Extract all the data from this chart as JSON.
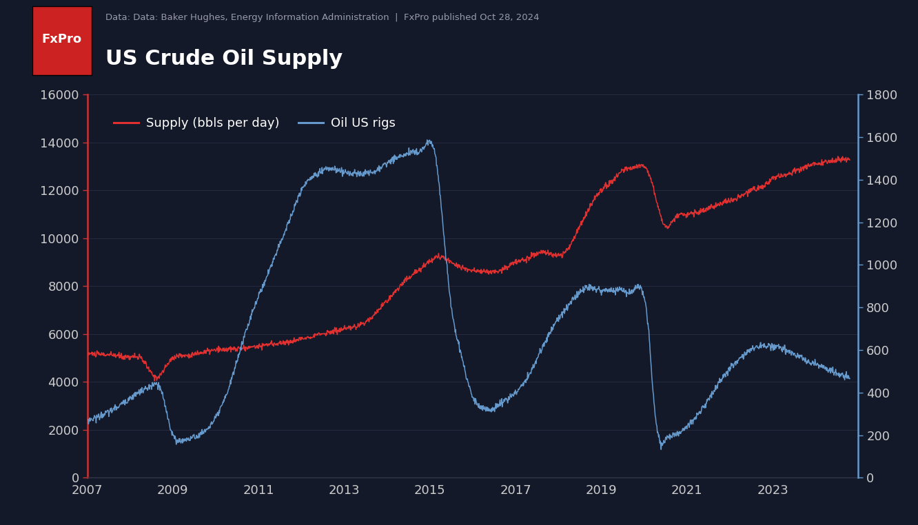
{
  "title": "US Crude Oil Supply",
  "subtitle": "Data: Data: Baker Hughes, Energy Information Administration  |  FxPro published Oct 28, 2024",
  "bg_color": "#131929",
  "header_bg": "#1e2535",
  "title_color": "#ffffff",
  "subtitle_color": "#999aaa",
  "supply_color": "#e03030",
  "rigs_color": "#6699cc",
  "left_axis_color": "#cc3333",
  "right_axis_color": "#6699cc",
  "tick_color": "#cccccc",
  "logo_bg": "#cc2222",
  "logo_text": "FxPro",
  "ylim_left": [
    0,
    16000
  ],
  "ylim_right": [
    0,
    1800
  ],
  "yticks_left": [
    0,
    2000,
    4000,
    6000,
    8000,
    10000,
    12000,
    14000,
    16000
  ],
  "yticks_right": [
    0,
    200,
    400,
    600,
    800,
    1000,
    1200,
    1400,
    1600,
    1800
  ],
  "legend_supply": "Supply (bbls per day)",
  "legend_rigs": "Oil US rigs",
  "xticks": [
    2007,
    2009,
    2011,
    2013,
    2015,
    2017,
    2019,
    2021,
    2023
  ],
  "xlim": [
    2007,
    2025
  ]
}
